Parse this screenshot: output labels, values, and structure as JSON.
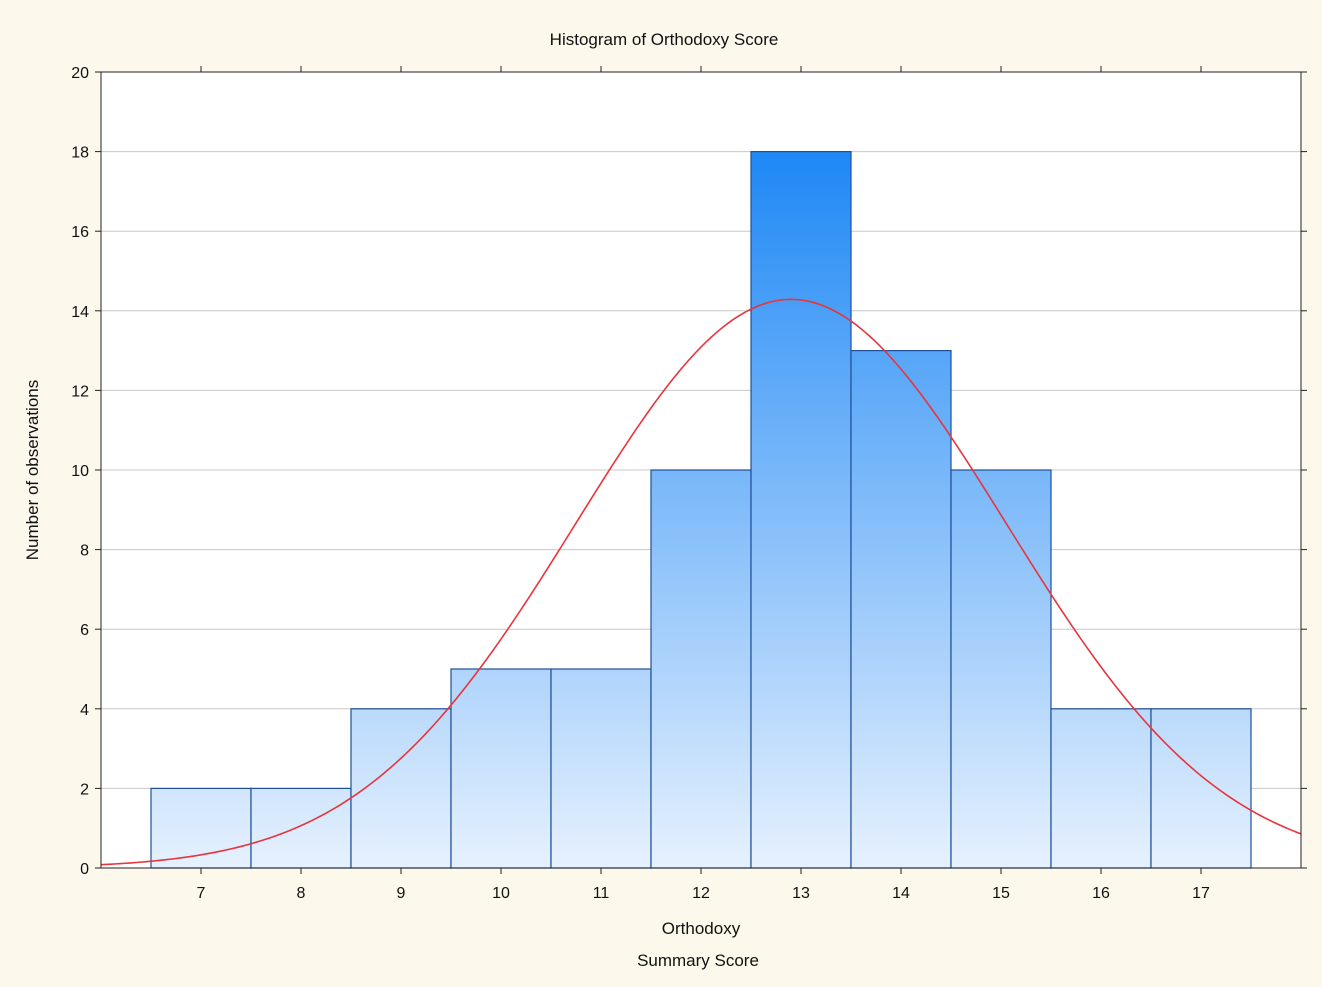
{
  "chart_data": {
    "type": "bar",
    "title": "Histogram of Orthodoxy Score",
    "xlabel": "Orthodoxy",
    "xlabel2": "Summary Score",
    "ylabel": "Number of observations",
    "categories": [
      "7",
      "8",
      "9",
      "10",
      "11",
      "12",
      "13",
      "14",
      "15",
      "16",
      "17"
    ],
    "bins": [
      {
        "center": 7,
        "count": 2
      },
      {
        "center": 8,
        "count": 2
      },
      {
        "center": 9,
        "count": 4
      },
      {
        "center": 10,
        "count": 5
      },
      {
        "center": 11,
        "count": 5
      },
      {
        "center": 12,
        "count": 10
      },
      {
        "center": 13,
        "count": 18
      },
      {
        "center": 14,
        "count": 13
      },
      {
        "center": 15,
        "count": 10
      },
      {
        "center": 16,
        "count": 4
      },
      {
        "center": 17,
        "count": 4
      }
    ],
    "xlim": [
      6,
      18
    ],
    "ylim": [
      0,
      20
    ],
    "yticks": [
      "0",
      "2",
      "4",
      "6",
      "8",
      "10",
      "12",
      "14",
      "16",
      "18",
      "20"
    ],
    "grid": true,
    "normal_fit": {
      "mean": 12.9,
      "sd": 2.15,
      "n": 77,
      "bin_width": 1
    },
    "colors": {
      "bar_top": "#1e88f5",
      "bar_bottom": "#e6f1fe",
      "bar_edge": "#1f4f9a",
      "curve": "#e8343c",
      "grid": "#c8c8c8",
      "plot_bg": "#ffffff",
      "page_bg": "#fdf8ec"
    }
  }
}
